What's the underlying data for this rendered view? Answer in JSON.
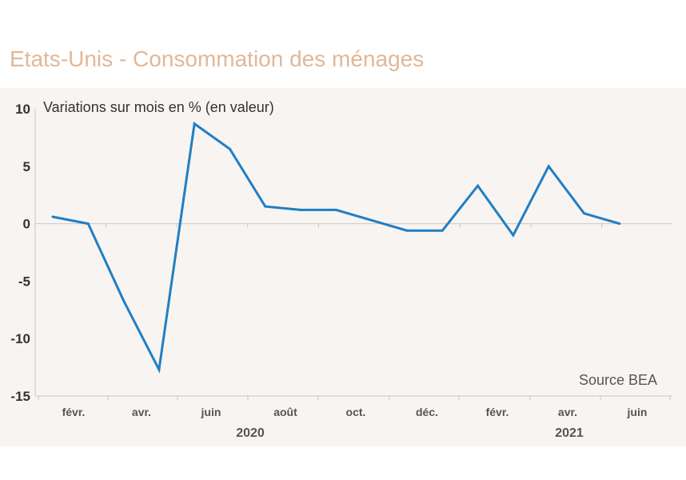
{
  "title": "Etats-Unis - Consommation des ménages",
  "source": "Source BEA",
  "colors": {
    "title": "#e0b899",
    "line": "#1f7fc6",
    "background": "#f8f4f1"
  },
  "chart_data": {
    "type": "line",
    "title": "Etats-Unis - Consommation des ménages",
    "ylabel": "Variations sur mois en % (en valeur)",
    "xlabel": "",
    "ylim": [
      -15,
      10
    ],
    "yticks": [
      10,
      5,
      0,
      -5,
      -10,
      -15
    ],
    "grid": false,
    "x_tick_labels": [
      "févr.",
      "avr.",
      "juin",
      "août",
      "oct.",
      "déc.",
      "févr.",
      "avr.",
      "juin"
    ],
    "year_labels": [
      "2020",
      "2021"
    ],
    "x": [
      "2020-01",
      "2020-02",
      "2020-03",
      "2020-04",
      "2020-05",
      "2020-06",
      "2020-07",
      "2020-08",
      "2020-09",
      "2020-10",
      "2020-11",
      "2020-12",
      "2021-01",
      "2021-02",
      "2021-03",
      "2021-04",
      "2021-05"
    ],
    "series": [
      {
        "values": [
          0.6,
          0.0,
          -6.7,
          -12.7,
          8.7,
          6.5,
          1.5,
          1.2,
          1.2,
          0.3,
          -0.6,
          -0.6,
          3.3,
          -1.0,
          5.0,
          0.9,
          0.0
        ]
      }
    ]
  }
}
